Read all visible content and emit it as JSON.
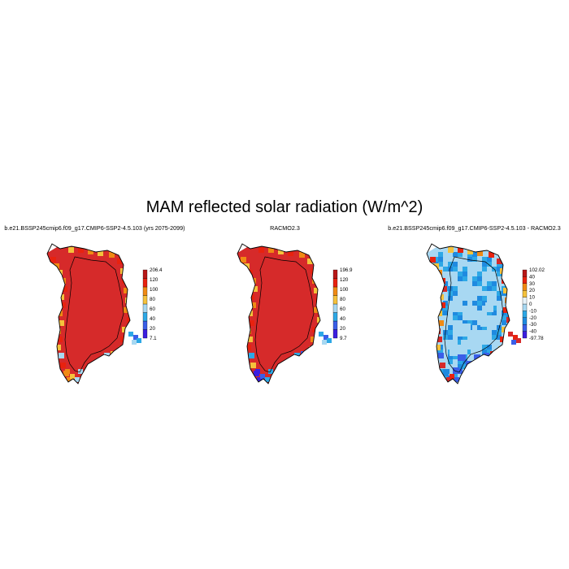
{
  "figure": {
    "title": "MAM reflected solar radiation (W/m^2)"
  },
  "colors": {
    "coastline": "#000000",
    "mask": "#ffffff"
  },
  "panels": [
    {
      "id": "model",
      "title": "b.e21.BSSP245cmip6.f09_g17.CMIP6-SSP2-4.5.103 (yrs 2075-2099)",
      "interior_color": "#d62a2a",
      "colorbar": {
        "colors": [
          "#3c1fe0",
          "#3a5ee8",
          "#2da8e6",
          "#a8d8f2",
          "#f5c23c",
          "#f08a14",
          "#e8220f",
          "#b81818"
        ],
        "labels": [
          "7.1",
          "20",
          "40",
          "60",
          "80",
          "100",
          "120",
          "206.4"
        ]
      },
      "edge_palette": [
        "#e8220f",
        "#f08a14",
        "#f5c23c",
        "#f08a14",
        "#e8220f",
        "#f5c23c"
      ],
      "south_palette": [
        "#f08a14",
        "#f5c23c",
        "#a8d8f2",
        "#e8220f",
        "#f08a14"
      ]
    },
    {
      "id": "racmo",
      "title": "RACMO2.3",
      "interior_color": "#d62a2a",
      "colorbar": {
        "colors": [
          "#3c1fe0",
          "#3a5ee8",
          "#2da8e6",
          "#a8d8f2",
          "#f5c23c",
          "#f08a14",
          "#e8220f",
          "#b81818"
        ],
        "labels": [
          "9.7",
          "20",
          "40",
          "60",
          "80",
          "100",
          "120",
          "196.9"
        ]
      },
      "edge_palette": [
        "#f08a14",
        "#f5c23c",
        "#e8220f",
        "#f08a14",
        "#f5c23c",
        "#e8220f"
      ],
      "south_palette": [
        "#3c1fe0",
        "#3a5ee8",
        "#2da8e6",
        "#f5c23c",
        "#3c1fe0"
      ]
    },
    {
      "id": "diff",
      "title": "b.e21.BSSP245cmip6.f09_g17.CMIP6-SSP2-4.5.103 - RACMO2.3",
      "interior_color": "#a8d8f2",
      "colorbar": {
        "colors": [
          "#3c1fe0",
          "#3a5ee8",
          "#1f8ae0",
          "#2da8e6",
          "#a8d8f2",
          "#e8f4fb",
          "#f5c23c",
          "#f08a14",
          "#e8220f",
          "#b81818"
        ],
        "labels": [
          "-97.78",
          "-40",
          "-30",
          "-20",
          "-10",
          "0",
          "10",
          "20",
          "30",
          "40",
          "102.02"
        ]
      },
      "edge_palette": [
        "#e8220f",
        "#f5c23c",
        "#f08a14",
        "#e8220f",
        "#d62a2a",
        "#f5c23c"
      ],
      "south_palette": [
        "#d62a2a",
        "#e8220f",
        "#3a5ee8",
        "#d62a2a",
        "#1f8ae0"
      ],
      "ring_palette": [
        "#2da8e6",
        "#2da8e6",
        "#1f8ae0",
        "#2da8e6"
      ]
    }
  ]
}
